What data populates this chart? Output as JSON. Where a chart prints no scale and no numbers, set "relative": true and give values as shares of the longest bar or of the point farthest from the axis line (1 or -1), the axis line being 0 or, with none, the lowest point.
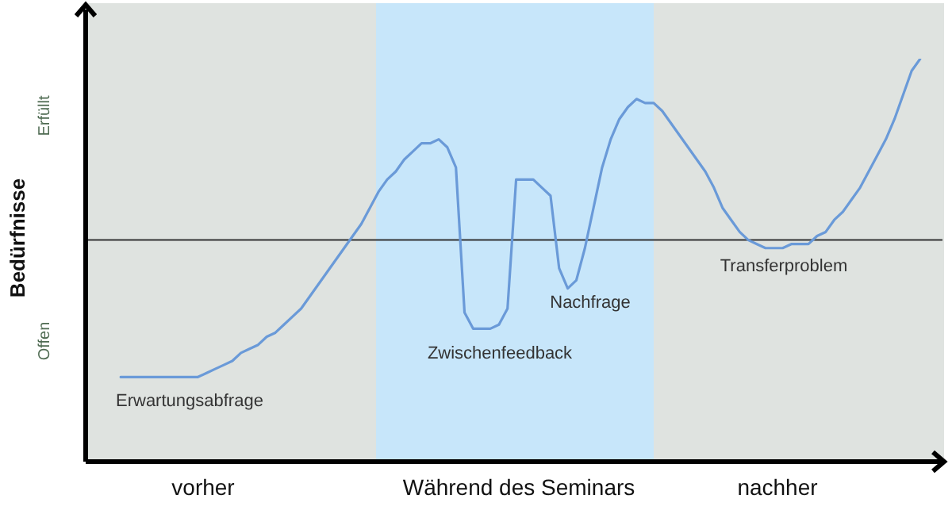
{
  "chart_data": {
    "type": "line",
    "ylabel": "Bedürfnisse",
    "relative": true,
    "marker": "none",
    "categories": [
      null,
      null,
      null,
      null,
      null,
      null,
      null,
      null,
      null,
      null,
      null,
      null,
      null,
      null,
      null,
      null,
      null,
      null,
      null,
      null,
      null,
      null,
      null,
      null,
      null,
      null,
      null,
      null,
      null,
      null,
      null,
      null,
      null,
      null,
      null,
      null,
      null,
      null,
      null,
      null,
      null,
      null,
      null,
      null,
      null,
      null,
      null,
      null,
      null,
      null,
      null,
      null,
      null,
      null,
      null,
      null,
      null,
      null,
      null,
      null,
      null,
      null,
      null,
      null,
      null,
      null,
      null,
      null,
      null,
      null,
      null,
      null,
      null,
      null,
      null,
      null,
      null,
      null,
      null,
      null,
      null,
      null,
      null,
      null,
      null,
      null,
      null,
      null,
      null,
      null,
      null,
      null,
      null,
      null
    ],
    "series": [
      {
        "color": "#6a9ad8",
        "values": [
          0.21,
          0.21,
          0.21,
          0.21,
          0.21,
          0.21,
          0.21,
          0.21,
          0.21,
          0.21,
          0.22,
          0.23,
          0.24,
          0.25,
          0.27,
          0.28,
          0.29,
          0.31,
          0.32,
          0.34,
          0.36,
          0.38,
          0.41,
          0.44,
          0.47,
          0.5,
          0.53,
          0.56,
          0.59,
          0.63,
          0.67,
          0.7,
          0.72,
          0.75,
          0.77,
          0.79,
          0.79,
          0.8,
          0.78,
          0.73,
          0.37,
          0.33,
          0.33,
          0.33,
          0.34,
          0.38,
          0.7,
          0.7,
          0.7,
          0.68,
          0.66,
          0.48,
          0.43,
          0.45,
          0.53,
          0.63,
          0.73,
          0.8,
          0.85,
          0.88,
          0.9,
          0.89,
          0.89,
          0.87,
          0.84,
          0.81,
          0.78,
          0.75,
          0.72,
          0.68,
          0.63,
          0.6,
          0.57,
          0.55,
          0.54,
          0.53,
          0.53,
          0.53,
          0.54,
          0.54,
          0.54,
          0.56,
          0.57,
          0.6,
          0.62,
          0.65,
          0.68,
          0.72,
          0.76,
          0.8,
          0.85,
          0.91,
          0.97,
          1
        ]
      }
    ],
    "ref_lines": [
      {
        "axis": "y",
        "value": 0.55,
        "color": "#333333"
      }
    ],
    "annotations": [
      "Erfüllt",
      "Offen",
      "Erwartungsabfrage",
      "Zwischenfeedback",
      "Nachfrage",
      "Transferproblem",
      "vorher",
      "Während des Seminars",
      "nachher"
    ]
  }
}
